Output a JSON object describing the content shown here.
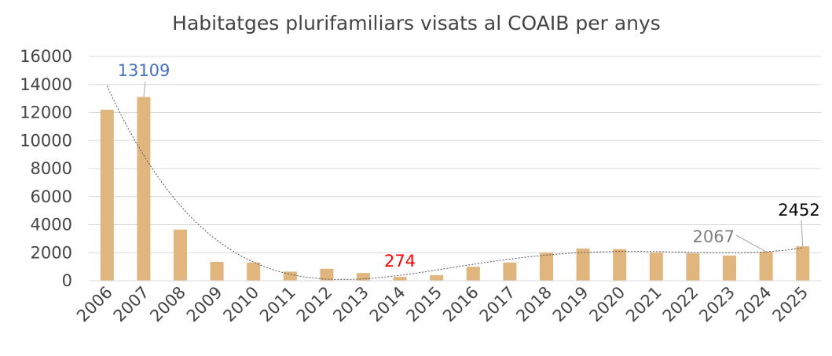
{
  "chart_data": {
    "type": "bar",
    "title": "Habitatges plurifamiliars visats al COAIB per anys",
    "xlabel": "",
    "ylabel": "",
    "ylim": [
      0,
      16000
    ],
    "yticks": [
      0,
      2000,
      4000,
      6000,
      8000,
      10000,
      12000,
      14000,
      16000
    ],
    "grid": true,
    "categories": [
      "2006",
      "2007",
      "2008",
      "2009",
      "2010",
      "2011",
      "2012",
      "2013",
      "2014",
      "2015",
      "2016",
      "2017",
      "2018",
      "2019",
      "2020",
      "2021",
      "2022",
      "2023",
      "2024",
      "2025"
    ],
    "values": [
      12200,
      13109,
      3650,
      1350,
      1300,
      650,
      850,
      550,
      274,
      400,
      1000,
      1300,
      2000,
      2300,
      2250,
      2000,
      1950,
      1800,
      2067,
      2452
    ],
    "trendline": {
      "style": "dotted",
      "color": "#555555"
    },
    "bar_color": "#E0B57E",
    "annotations": [
      {
        "text": "13109",
        "category": "2007",
        "color": "#4472C4"
      },
      {
        "text": "274",
        "category": "2014",
        "color": "#FF0000"
      },
      {
        "text": "2067",
        "category": "2024",
        "color": "#7F7F7F"
      },
      {
        "text": "2452",
        "category": "2025",
        "color": "#000000"
      }
    ]
  }
}
